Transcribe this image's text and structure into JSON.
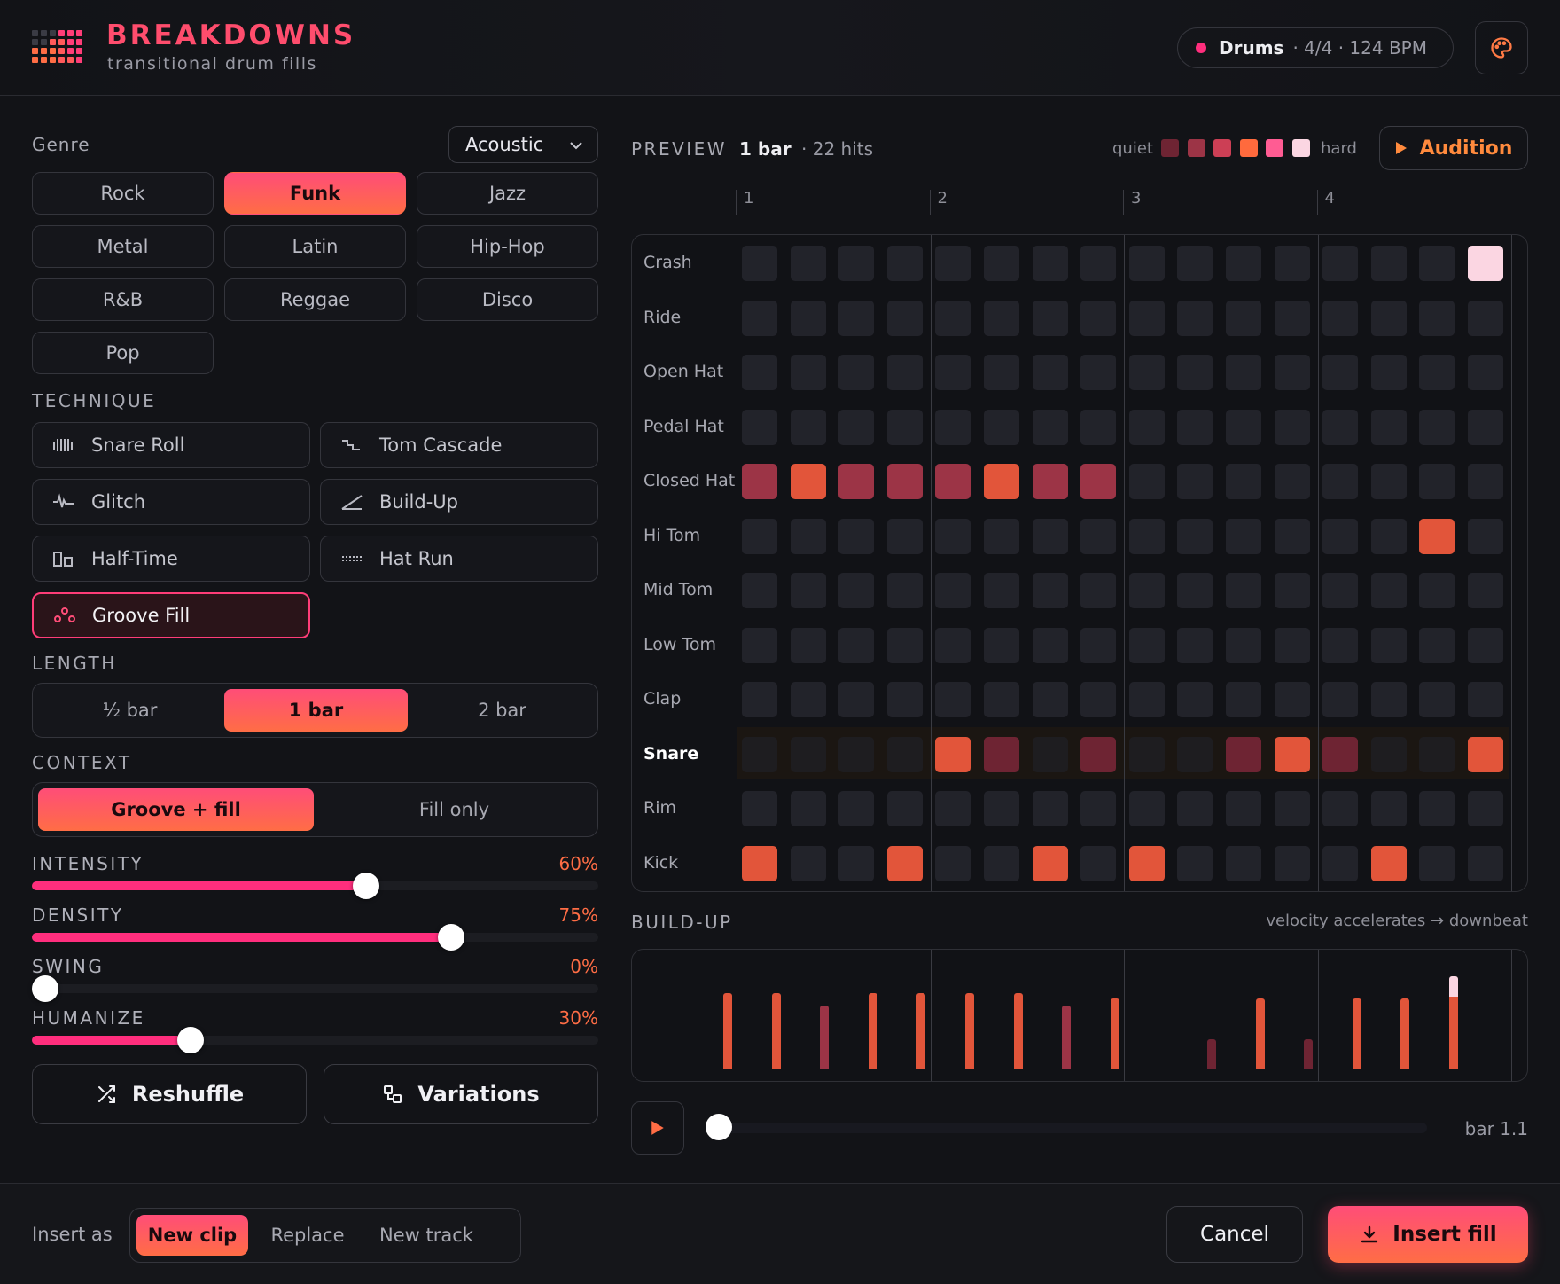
{
  "header": {
    "title": "BREAKDOWNS",
    "subtitle": "transitional drum fills",
    "track_name": "Drums",
    "track_meta": "· 4/4 · 124 BPM",
    "theme_icon": "palette-icon"
  },
  "genre": {
    "label": "Genre",
    "dropdown_value": "Acoustic",
    "options": [
      "Rock",
      "Funk",
      "Jazz",
      "Metal",
      "Latin",
      "Hip-Hop",
      "R&B",
      "Reggae",
      "Disco",
      "Pop"
    ],
    "active": "Funk"
  },
  "technique": {
    "label": "TECHNIQUE",
    "items": [
      {
        "label": "Snare Roll",
        "icon": "snare-roll-icon"
      },
      {
        "label": "Tom Cascade",
        "icon": "tom-cascade-icon"
      },
      {
        "label": "Glitch",
        "icon": "glitch-icon"
      },
      {
        "label": "Build-Up",
        "icon": "build-up-icon"
      },
      {
        "label": "Half-Time",
        "icon": "half-time-icon"
      },
      {
        "label": "Hat Run",
        "icon": "hat-run-icon"
      },
      {
        "label": "Groove Fill",
        "icon": "groove-fill-icon"
      }
    ],
    "selected": "Groove Fill"
  },
  "length": {
    "label": "LENGTH",
    "options": [
      "½ bar",
      "1 bar",
      "2 bar"
    ],
    "active": "1 bar"
  },
  "context": {
    "label": "CONTEXT",
    "options": [
      "Groove + fill",
      "Fill only"
    ],
    "active": "Groove + fill"
  },
  "sliders": [
    {
      "label": "INTENSITY",
      "value": "60%",
      "level": 0.6
    },
    {
      "label": "DENSITY",
      "value": "75%",
      "level": 0.75
    },
    {
      "label": "SWING",
      "value": "0%",
      "level": 0.0
    },
    {
      "label": "HUMANIZE",
      "value": "30%",
      "level": 0.3
    }
  ],
  "actions": {
    "reshuffle": "Reshuffle",
    "variations": "Variations"
  },
  "preview": {
    "label": "PREVIEW",
    "bars": "1 bar",
    "hits": "· 22 hits",
    "quiet": "quiet",
    "hard": "hard",
    "velocity_colors": [
      "#6e2433",
      "#9c3446",
      "#cc3f55",
      "#ff6a3d",
      "#ff5c93",
      "#fbd6e2"
    ],
    "audition": "Audition",
    "beats": [
      "1",
      "2",
      "3",
      "4"
    ],
    "rows": [
      {
        "name": "Crash",
        "cells": [
          0,
          0,
          0,
          0,
          0,
          0,
          0,
          0,
          0,
          0,
          0,
          0,
          0,
          0,
          0,
          6
        ]
      },
      {
        "name": "Ride",
        "cells": [
          0,
          0,
          0,
          0,
          0,
          0,
          0,
          0,
          0,
          0,
          0,
          0,
          0,
          0,
          0,
          0
        ]
      },
      {
        "name": "Open Hat",
        "cells": [
          0,
          0,
          0,
          0,
          0,
          0,
          0,
          0,
          0,
          0,
          0,
          0,
          0,
          0,
          0,
          0
        ]
      },
      {
        "name": "Pedal Hat",
        "cells": [
          0,
          0,
          0,
          0,
          0,
          0,
          0,
          0,
          0,
          0,
          0,
          0,
          0,
          0,
          0,
          0
        ]
      },
      {
        "name": "Closed Hat",
        "cells": [
          2,
          4,
          2,
          2,
          2,
          4,
          2,
          2,
          0,
          0,
          0,
          0,
          0,
          0,
          0,
          0
        ]
      },
      {
        "name": "Hi Tom",
        "cells": [
          0,
          0,
          0,
          0,
          0,
          0,
          0,
          0,
          0,
          0,
          0,
          0,
          0,
          0,
          4,
          0
        ]
      },
      {
        "name": "Mid Tom",
        "cells": [
          0,
          0,
          0,
          0,
          0,
          0,
          0,
          0,
          0,
          0,
          0,
          0,
          0,
          0,
          0,
          0
        ]
      },
      {
        "name": "Low Tom",
        "cells": [
          0,
          0,
          0,
          0,
          0,
          0,
          0,
          0,
          0,
          0,
          0,
          0,
          0,
          0,
          0,
          0
        ]
      },
      {
        "name": "Clap",
        "cells": [
          0,
          0,
          0,
          0,
          0,
          0,
          0,
          0,
          0,
          0,
          0,
          0,
          0,
          0,
          0,
          0
        ]
      },
      {
        "name": "Snare",
        "cells": [
          0,
          0,
          0,
          0,
          4,
          1,
          0,
          1,
          0,
          0,
          1,
          4,
          1,
          0,
          0,
          4
        ],
        "highlight": true
      },
      {
        "name": "Rim",
        "cells": [
          0,
          0,
          0,
          0,
          0,
          0,
          0,
          0,
          0,
          0,
          0,
          0,
          0,
          0,
          0,
          0
        ]
      },
      {
        "name": "Kick",
        "cells": [
          4,
          0,
          0,
          4,
          0,
          0,
          4,
          0,
          4,
          0,
          0,
          0,
          0,
          4,
          0,
          0
        ]
      }
    ]
  },
  "buildup": {
    "label": "BUILD-UP",
    "note": "velocity accelerates → downbeat",
    "steps": [
      0.82,
      0.82,
      0.68,
      0.82,
      0.82,
      0.82,
      0.82,
      0.68,
      0.76,
      0.0,
      0.32,
      0.76,
      0.32,
      0.76,
      0.76,
      1.0
    ]
  },
  "transport": {
    "play_icon": "play-icon",
    "position": "bar 1.1",
    "progress": 0.0
  },
  "footer": {
    "insert_as": "Insert as",
    "modes": [
      "New clip",
      "Replace",
      "New track"
    ],
    "active_mode": "New clip",
    "cancel": "Cancel",
    "insert": "Insert fill"
  }
}
